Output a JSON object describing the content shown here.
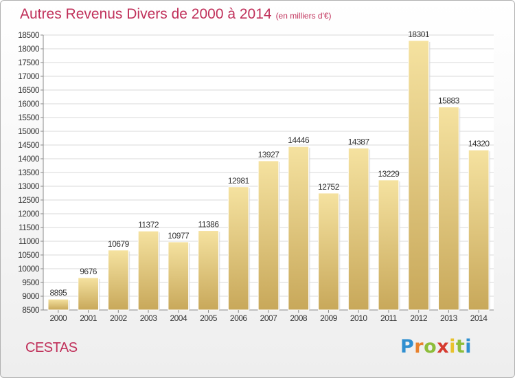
{
  "title": "Autres Revenus Divers de 2000 à 2014",
  "subtitle": "(en milliers d'€)",
  "place": "CESTAS",
  "brand": {
    "text": "Proxiti",
    "letters": [
      "P",
      "r",
      "o",
      "x",
      "i",
      "t",
      "i"
    ],
    "colors": [
      "#2f8fd0",
      "#e8812d",
      "#8dbd3a",
      "#d63a2f",
      "#e8c22d",
      "#8dbd3a",
      "#2f8fd0"
    ]
  },
  "chart_data": {
    "type": "bar",
    "categories": [
      "2000",
      "2001",
      "2002",
      "2003",
      "2004",
      "2005",
      "2006",
      "2007",
      "2008",
      "2009",
      "2010",
      "2011",
      "2012",
      "2013",
      "2014"
    ],
    "values": [
      8895,
      9676,
      10679,
      11372,
      10977,
      11386,
      12981,
      13927,
      14446,
      12752,
      14387,
      13229,
      18301,
      15883,
      14320
    ],
    "value_labels": [
      "8895",
      "9676",
      "10679",
      "11372",
      "10977",
      "11386",
      "12981",
      "13927",
      "14446",
      "12752",
      "14387",
      "13229",
      "18301",
      "15883",
      "14320"
    ],
    "ylim": [
      8500,
      18500
    ],
    "yticks": [
      "8500",
      "9000",
      "9500",
      "10000",
      "10500",
      "11000",
      "11500",
      "12000",
      "12500",
      "13000",
      "13500",
      "14000",
      "14500",
      "15000",
      "15500",
      "16000",
      "16500",
      "17000",
      "17500",
      "18000",
      "18500"
    ],
    "grid": true,
    "bar_color_top": "#f5e2a0",
    "bar_color_bottom": "#c8a85a",
    "title": "Autres Revenus Divers de 2000 à 2014",
    "xlabel": "",
    "ylabel": ""
  }
}
